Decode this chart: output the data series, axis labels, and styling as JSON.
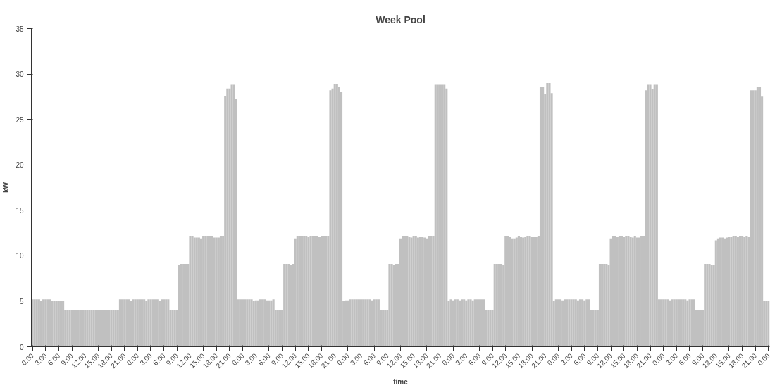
{
  "chart_data": {
    "type": "bar",
    "title": "Week Pool",
    "xlabel": "time",
    "ylabel": "kW",
    "color": "#c0c0c0",
    "grid": false,
    "categories": [
      "0:00",
      null,
      null,
      null,
      null,
      null,
      "3:00",
      null,
      null,
      null,
      null,
      null,
      "6:00",
      null,
      null,
      null,
      null,
      null,
      "9:00",
      null,
      null,
      null,
      null,
      null,
      "12:00",
      null,
      null,
      null,
      null,
      null,
      "15:00",
      null,
      null,
      null,
      null,
      null,
      "18:00",
      null,
      null,
      null,
      null,
      null,
      "21:00",
      null,
      null,
      null,
      null,
      null,
      "0:00",
      null,
      null,
      null,
      null,
      null,
      "3:00",
      null,
      null,
      null,
      null,
      null,
      "6:00",
      null,
      null,
      null,
      null,
      null,
      "9:00",
      null,
      null,
      null,
      null,
      null,
      "12:00",
      null,
      null,
      null,
      null,
      null,
      "15:00",
      null,
      null,
      null,
      null,
      null,
      "18:00",
      null,
      null,
      null,
      null,
      null,
      "21:00",
      null,
      null,
      null,
      null,
      null,
      "0:00",
      null,
      null,
      null,
      null,
      null,
      "3:00",
      null,
      null,
      null,
      null,
      null,
      "6:00",
      null,
      null,
      null,
      null,
      null,
      "9:00",
      null,
      null,
      null,
      null,
      null,
      "12:00",
      null,
      null,
      null,
      null,
      null,
      "15:00",
      null,
      null,
      null,
      null,
      null,
      "18:00",
      null,
      null,
      null,
      null,
      null,
      "21:00",
      null,
      null,
      null,
      null,
      null,
      "0:00",
      null,
      null,
      null,
      null,
      null,
      "3:00",
      null,
      null,
      null,
      null,
      null,
      "6:00",
      null,
      null,
      null,
      null,
      null,
      "9:00",
      null,
      null,
      null,
      null,
      null,
      "12:00",
      null,
      null,
      null,
      null,
      null,
      "15:00",
      null,
      null,
      null,
      null,
      null,
      "18:00",
      null,
      null,
      null,
      null,
      null,
      "21:00",
      null,
      null,
      null,
      null,
      null,
      "0:00",
      null,
      null,
      null,
      null,
      null,
      "3:00",
      null,
      null,
      null,
      null,
      null,
      "6:00",
      null,
      null,
      null,
      null,
      null,
      "9:00",
      null,
      null,
      null,
      null,
      null,
      "12:00",
      null,
      null,
      null,
      null,
      null,
      "15:00",
      null,
      null,
      null,
      null,
      null,
      "18:00",
      null,
      null,
      null,
      null,
      null,
      "21:00",
      null,
      null,
      null,
      null,
      null,
      "0:00",
      null,
      null,
      null,
      null,
      null,
      "3:00",
      null,
      null,
      null,
      null,
      null,
      "6:00",
      null,
      null,
      null,
      null,
      null,
      "9:00",
      null,
      null,
      null,
      null,
      null,
      "12:00",
      null,
      null,
      null,
      null,
      null,
      "15:00",
      null,
      null,
      null,
      null,
      null,
      "18:00",
      null,
      null,
      null,
      null,
      null,
      "21:00",
      null,
      null,
      null,
      null,
      null,
      "0:00",
      null,
      null,
      null,
      null,
      null,
      "3:00",
      null,
      null,
      null,
      null,
      null,
      "6:00",
      null,
      null,
      null,
      null,
      null,
      "9:00",
      null,
      null,
      null,
      null,
      null,
      "12:00",
      null,
      null,
      null,
      null,
      null,
      "15:00",
      null,
      null,
      null,
      null,
      null,
      "18:00",
      null,
      null,
      null,
      null,
      null,
      "21:00",
      null,
      null,
      null,
      null,
      null,
      "0:00"
    ],
    "values": [
      5.2,
      5.2,
      5.2,
      5.2,
      5.0,
      5.2,
      5.2,
      5.2,
      5.2,
      5.0,
      5.0,
      5.0,
      5.0,
      5.0,
      5.0,
      4.0,
      4.0,
      4.0,
      4.0,
      4.0,
      4.0,
      4.0,
      4.0,
      4.0,
      4.0,
      4.0,
      4.0,
      4.0,
      4.0,
      4.0,
      4.0,
      4.0,
      4.0,
      4.0,
      4.0,
      4.0,
      4.0,
      4.0,
      4.0,
      4.0,
      5.2,
      5.2,
      5.2,
      5.2,
      5.2,
      5.0,
      5.2,
      5.2,
      5.2,
      5.2,
      5.2,
      5.2,
      5.0,
      5.2,
      5.2,
      5.2,
      5.2,
      5.2,
      5.0,
      5.2,
      5.2,
      5.2,
      5.2,
      4.0,
      4.0,
      4.0,
      4.0,
      9.0,
      9.1,
      9.1,
      9.1,
      9.1,
      12.2,
      12.2,
      12.0,
      12.0,
      12.0,
      11.9,
      12.2,
      12.2,
      12.2,
      12.2,
      12.2,
      12.0,
      12.0,
      12.0,
      12.2,
      12.2,
      27.6,
      28.4,
      28.4,
      28.8,
      28.8,
      27.3,
      5.2,
      5.2,
      5.2,
      5.2,
      5.2,
      5.2,
      5.2,
      5.0,
      5.1,
      5.1,
      5.2,
      5.2,
      5.2,
      5.1,
      5.1,
      5.1,
      5.2,
      4.0,
      4.0,
      4.0,
      4.0,
      9.1,
      9.1,
      9.1,
      9.0,
      9.1,
      11.9,
      12.2,
      12.2,
      12.2,
      12.2,
      12.2,
      12.1,
      12.2,
      12.2,
      12.2,
      12.2,
      12.1,
      12.2,
      12.2,
      12.2,
      12.2,
      28.2,
      28.4,
      28.9,
      28.9,
      28.6,
      28.0,
      5.0,
      5.1,
      5.1,
      5.2,
      5.2,
      5.2,
      5.2,
      5.2,
      5.2,
      5.2,
      5.2,
      5.2,
      5.2,
      5.1,
      5.2,
      5.2,
      5.2,
      4.0,
      4.0,
      4.0,
      4.0,
      9.1,
      9.1,
      9.0,
      9.1,
      9.1,
      11.9,
      12.2,
      12.2,
      12.2,
      12.1,
      12.0,
      12.2,
      12.2,
      12.0,
      12.1,
      12.1,
      12.0,
      11.9,
      12.2,
      12.2,
      12.2,
      28.8,
      28.8,
      28.8,
      28.8,
      28.8,
      28.4,
      5.0,
      5.2,
      5.1,
      5.2,
      5.2,
      5.1,
      5.2,
      5.2,
      5.1,
      5.2,
      5.2,
      5.1,
      5.2,
      5.2,
      5.2,
      5.2,
      5.2,
      4.0,
      4.0,
      4.0,
      4.0,
      9.1,
      9.1,
      9.1,
      9.1,
      9.0,
      12.2,
      12.2,
      12.1,
      11.9,
      11.9,
      12.0,
      12.2,
      12.1,
      12.0,
      12.1,
      12.2,
      12.2,
      12.1,
      12.1,
      12.1,
      12.2,
      28.6,
      28.6,
      27.8,
      29.0,
      29.0,
      27.9,
      5.0,
      5.2,
      5.2,
      5.2,
      5.1,
      5.2,
      5.2,
      5.2,
      5.2,
      5.2,
      5.2,
      5.1,
      5.2,
      5.2,
      5.1,
      5.2,
      5.2,
      4.0,
      4.0,
      4.0,
      4.0,
      9.1,
      9.1,
      9.1,
      9.1,
      9.0,
      11.9,
      12.2,
      12.2,
      12.1,
      12.2,
      12.2,
      12.1,
      12.2,
      12.2,
      12.1,
      12.0,
      12.2,
      12.0,
      12.0,
      12.2,
      12.2,
      28.2,
      28.8,
      28.8,
      28.3,
      28.8,
      28.8,
      5.2,
      5.2,
      5.2,
      5.2,
      5.2,
      5.1,
      5.2,
      5.2,
      5.2,
      5.2,
      5.2,
      5.2,
      5.2,
      5.1,
      5.2,
      5.2,
      5.2,
      4.0,
      4.0,
      4.0,
      4.0,
      9.1,
      9.1,
      9.1,
      9.0,
      9.0,
      11.7,
      11.9,
      12.0,
      12.0,
      11.9,
      12.0,
      12.1,
      12.1,
      12.2,
      12.2,
      12.1,
      12.2,
      12.2,
      12.1,
      12.2,
      12.1,
      28.2,
      28.2,
      28.2,
      28.6,
      28.6,
      27.5,
      5.0,
      5.0,
      5.0
    ],
    "ylim": [
      0,
      35
    ],
    "yticks": [
      0,
      5,
      10,
      15,
      20,
      25,
      30,
      35
    ]
  }
}
